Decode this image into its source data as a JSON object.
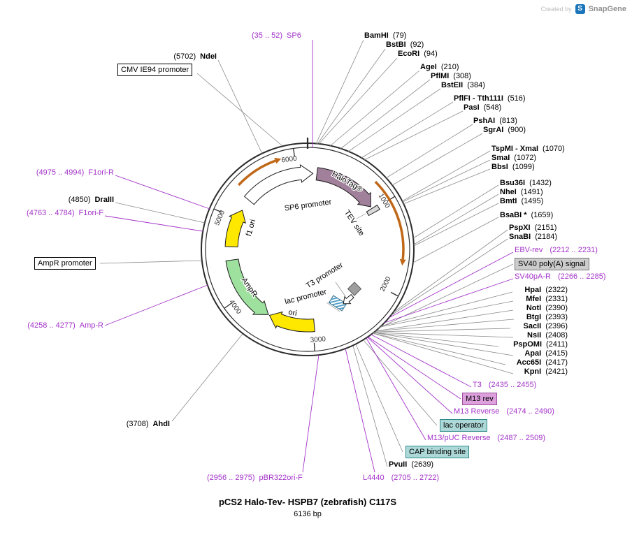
{
  "watermark": {
    "created_by": "Created by",
    "brand": "SnapGene",
    "logo_letter": "S"
  },
  "title": {
    "name": "pCS2 Halo-Tev- HSPB7 (zebrafish) C117S",
    "length": "6136 bp"
  },
  "ticks": [
    "1000",
    "2000",
    "3000",
    "4000",
    "5000",
    "6000"
  ],
  "features": {
    "sp6_promoter": "SP6 promoter",
    "halotag": "HaloTag®",
    "tev_site": "TEV site",
    "f1_ori": "f1 ori",
    "ampr": "AmpR",
    "ori": "ori",
    "lac_promoter": "lac promoter",
    "t3_promoter": "T3 promoter"
  },
  "boxes": {
    "cmv": "CMV IE94 promoter",
    "ampr_promoter": "AmpR promoter",
    "sv40_polya": "SV40 poly(A) signal",
    "m13_rev": "M13 rev",
    "lac_operator": "lac operator",
    "cap_binding": "CAP binding site"
  },
  "enzymes": [
    {
      "name": "NdeI",
      "pos": "(5702)"
    },
    {
      "name": "DraIII",
      "pos": "(4850)"
    },
    {
      "name": "AhdI",
      "pos": "(3708)"
    },
    {
      "name": "BamHI",
      "pos": "(79)"
    },
    {
      "name": "BstBI",
      "pos": "(92)"
    },
    {
      "name": "EcoRI",
      "pos": "(94)"
    },
    {
      "name": "AgeI",
      "pos": "(210)"
    },
    {
      "name": "PflMI",
      "pos": "(308)"
    },
    {
      "name": "BstEII",
      "pos": "(384)"
    },
    {
      "name": "PflFI - Tth111I",
      "pos": "(516)"
    },
    {
      "name": "PasI",
      "pos": "(548)"
    },
    {
      "name": "PshAI",
      "pos": "(813)"
    },
    {
      "name": "SgrAI",
      "pos": "(900)"
    },
    {
      "name": "TspMI - XmaI",
      "pos": "(1070)"
    },
    {
      "name": "SmaI",
      "pos": "(1072)"
    },
    {
      "name": "BbsI",
      "pos": "(1099)"
    },
    {
      "name": "Bsu36I",
      "pos": "(1432)"
    },
    {
      "name": "NheI",
      "pos": "(1491)"
    },
    {
      "name": "BmtI",
      "pos": "(1495)"
    },
    {
      "name": "BsaBI *",
      "pos": "(1659)"
    },
    {
      "name": "PspXI",
      "pos": "(2151)"
    },
    {
      "name": "SnaBI",
      "pos": "(2184)"
    },
    {
      "name": "HpaI",
      "pos": "(2322)"
    },
    {
      "name": "MfeI",
      "pos": "(2331)"
    },
    {
      "name": "NotI",
      "pos": "(2390)"
    },
    {
      "name": "BtgI",
      "pos": "(2393)"
    },
    {
      "name": "SacII",
      "pos": "(2396)"
    },
    {
      "name": "NsiI",
      "pos": "(2408)"
    },
    {
      "name": "PspOMI",
      "pos": "(2411)"
    },
    {
      "name": "ApaI",
      "pos": "(2415)"
    },
    {
      "name": "Acc65I",
      "pos": "(2417)"
    },
    {
      "name": "KpnI",
      "pos": "(2421)"
    },
    {
      "name": "PvuII",
      "pos": "(2639)"
    }
  ],
  "primers": [
    {
      "name": "SP6",
      "pos": "(35 .. 52)"
    },
    {
      "name": "F1ori-R",
      "pos": "(4975 .. 4994)"
    },
    {
      "name": "F1ori-F",
      "pos": "(4763 .. 4784)"
    },
    {
      "name": "Amp-R",
      "pos": "(4258 .. 4277)"
    },
    {
      "name": "pBR322ori-F",
      "pos": "(2956 .. 2975)"
    },
    {
      "name": "EBV-rev",
      "pos": "(2212 .. 2231)"
    },
    {
      "name": "SV40pA-R",
      "pos": "(2266 .. 2285)"
    },
    {
      "name": "T3",
      "pos": "(2435 .. 2455)"
    },
    {
      "name": "M13 Reverse",
      "pos": "(2474 .. 2490)"
    },
    {
      "name": "M13/pUC Reverse",
      "pos": "(2487 .. 2509)"
    },
    {
      "name": "L4440",
      "pos": "(2705 .. 2722)"
    }
  ],
  "colors": {
    "purple": "#A333C8",
    "line_gray": "#8A8A8A",
    "backbone": "#2B2B2B",
    "promoter_fill": "#FFFFFF",
    "halotag_fill": "#A1809B",
    "tev_fill": "#D9D9D9",
    "f1ori_fill": "#FFE800",
    "ori_fill": "#FFE800",
    "ampr_fill": "#9EE09E",
    "orange_arc": "#C06818",
    "polya_gray": "#9E9E9E",
    "hatch_blue": "#4A9BC8",
    "teal_box_bg": "#ADD8D8",
    "teal_box_border": "#2E8B8B",
    "violet_box_bg": "#DDA0DD",
    "violet_box_border": "#9B4F9B",
    "gray_box_bg": "#CCCCCC",
    "snapgene_blue": "#1B75BB"
  }
}
